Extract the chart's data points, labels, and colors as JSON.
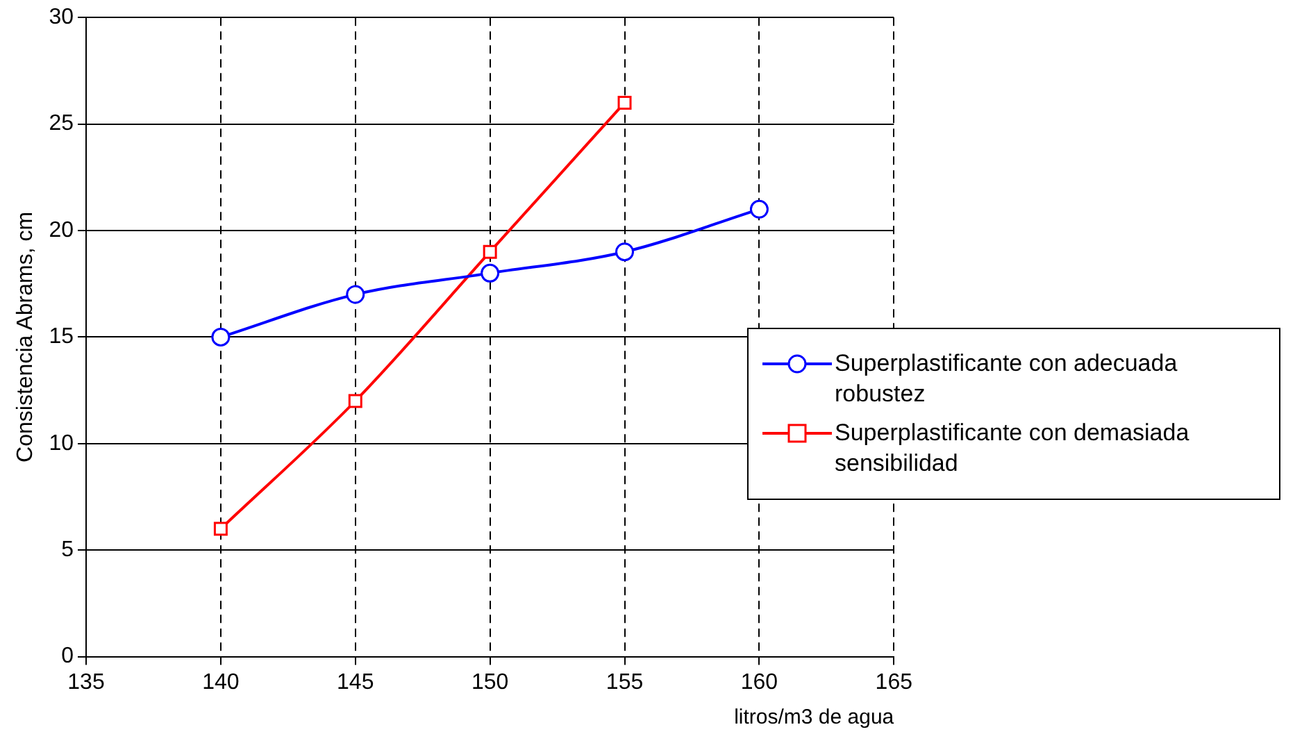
{
  "chart_data": {
    "type": "line",
    "ylabel": "Consistencia Abrams, cm",
    "xlabel": "litros/m3 de agua",
    "x": [
      140,
      145,
      150,
      155,
      160
    ],
    "series": [
      {
        "name": "Superplastificante con adecuada robustez",
        "color": "#0000ff",
        "marker": "circle",
        "values": [
          15,
          17,
          18,
          19,
          21
        ]
      },
      {
        "name": "Superplastificante con demasiada sensibilidad",
        "color": "#ff0000",
        "marker": "square",
        "values": [
          6,
          12,
          19,
          26,
          null
        ]
      }
    ],
    "xlim": [
      135,
      165
    ],
    "xticks": [
      135,
      140,
      145,
      150,
      155,
      160,
      165
    ],
    "ylim": [
      0,
      30
    ],
    "yticks": [
      0,
      5,
      10,
      15,
      20,
      25,
      30
    ],
    "grid": true,
    "legend": "right",
    "line_style": "solid"
  }
}
